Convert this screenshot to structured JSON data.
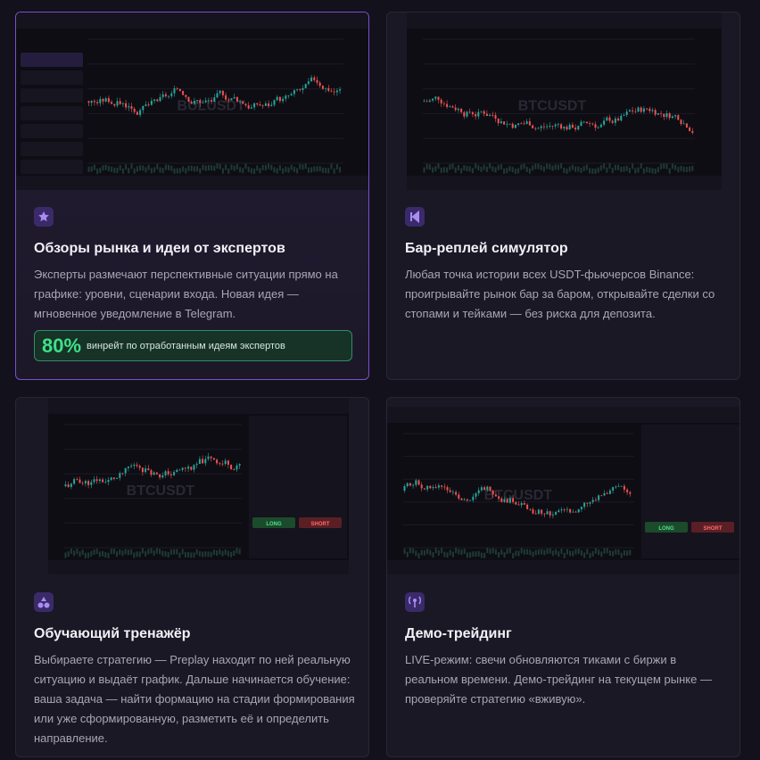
{
  "cards": [
    {
      "title": "Обзоры рынка и идеи от экспертов",
      "description": "Эксперты размечают перспективные ситуации прямо на графике: уровни, сценарии входа. Новая идея — мгновенное уведомление в Telegram.",
      "stat": {
        "value": "80%",
        "label": "винрейт по отработанным идеям экспертов"
      },
      "screenshot": {
        "watermark": "BULUSDT"
      }
    },
    {
      "title": "Бар-реплей симулятор",
      "description": "Любая точка истории всех USDT-фьючерсов Binance: проигрывайте рынок бар за баром, открывайте сделки со стопами и тейками — без риска для депозита.",
      "screenshot": {
        "watermark": "BTCUSDT"
      }
    },
    {
      "title": "Обучающий тренажёр",
      "description": "Выбираете стратегию — Preplay находит по ней реальную ситуацию и выдаёт график. Дальше начинается обучение: ваша задача — найти формацию на стадии формирования или уже сформированную, разметить её и определить направление.",
      "screenshot": {
        "watermark": "BTCUSDT",
        "buttons": [
          "LONG",
          "SHORT"
        ]
      }
    },
    {
      "title": "Демо-трейдинг",
      "description": "LIVE-режим: свечи обновляются тиками с биржи в реальном времени. Демо-трейдинг на текущем рынке — проверяйте стратегию «вживую».",
      "screenshot": {
        "watermark": "BTCUSDT",
        "buttons": [
          "LONG",
          "SHORT"
        ]
      }
    }
  ]
}
